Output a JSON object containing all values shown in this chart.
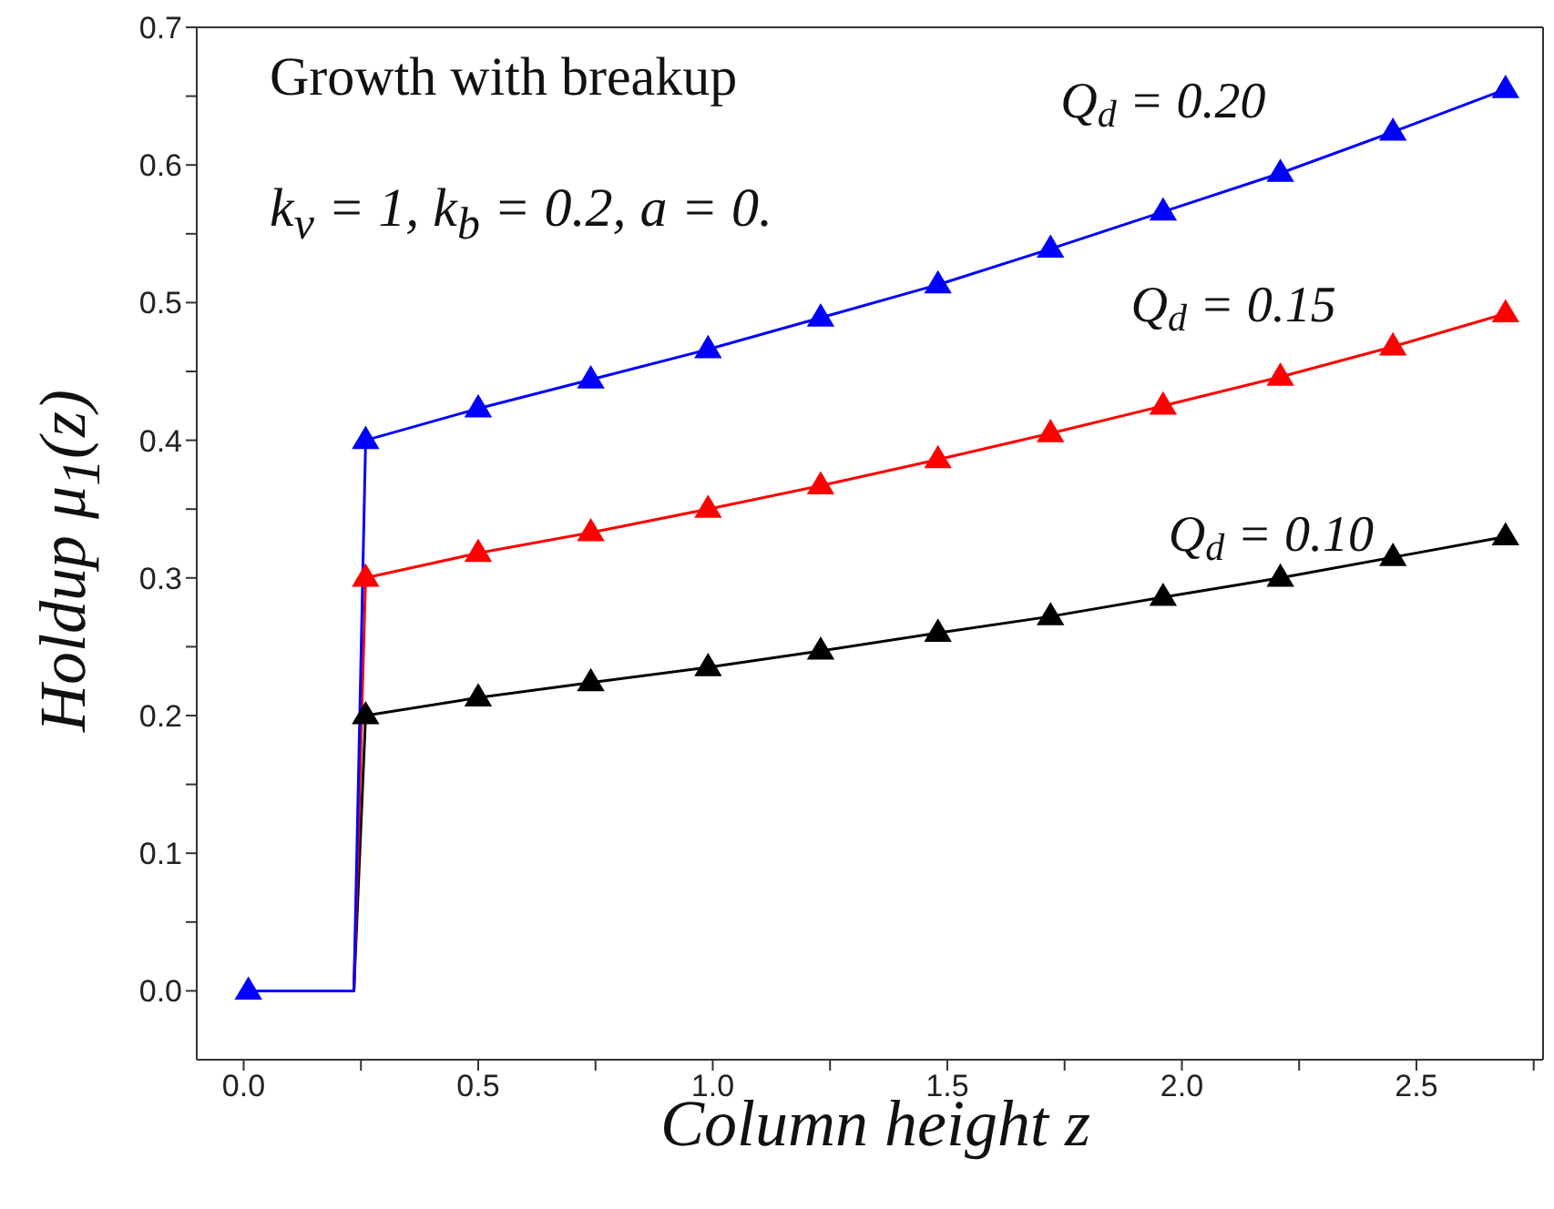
{
  "chart_data": {
    "type": "line",
    "xlabel": "Column height z",
    "ylabel": "Holdup μ$_{1}$(z)",
    "annotations": [
      "Growth with breakup",
      "k$_{v}$ = 1, k$_{b}$ = 0.2, a = 0."
    ],
    "series": [
      {
        "name": "Q$_{d}$ = 0.10",
        "marker": "none",
        "color": "#000000",
        "x": [
          0.01,
          0.235,
          0.26,
          0.5,
          0.74,
          0.99,
          1.23,
          1.48,
          1.72,
          1.96,
          2.21,
          2.45,
          2.69
        ],
        "values": [
          0,
          0,
          0.2,
          0.213,
          0.224,
          0.235,
          0.247,
          0.26,
          0.272,
          0.286,
          0.3,
          0.315,
          0.33
        ]
      },
      {
        "name": "Q$_{d}$ = 0.15",
        "marker": "none",
        "color": "#ff0000",
        "x": [
          0.01,
          0.235,
          0.26,
          0.5,
          0.74,
          0.99,
          1.23,
          1.48,
          1.72,
          1.96,
          2.21,
          2.45,
          2.69
        ],
        "values": [
          0,
          0,
          0.3,
          0.318,
          0.333,
          0.35,
          0.367,
          0.386,
          0.405,
          0.425,
          0.446,
          0.468,
          0.492
        ]
      },
      {
        "name": "Q$_{d}$ = 0.20",
        "marker": "none",
        "color": "#0000ff",
        "x": [
          0.01,
          0.235,
          0.26,
          0.5,
          0.74,
          0.99,
          1.23,
          1.48,
          1.72,
          1.96,
          2.21,
          2.45,
          2.69
        ],
        "values": [
          0,
          0,
          0.4,
          0.423,
          0.444,
          0.466,
          0.489,
          0.513,
          0.539,
          0.566,
          0.594,
          0.624,
          0.655
        ]
      },
      {
        "type": "scatter",
        "color": "#000000",
        "x": [
          0.26,
          0.5,
          0.74,
          0.99,
          1.23,
          1.48,
          1.72,
          1.96,
          2.21,
          2.45,
          2.69
        ],
        "values": [
          0.2,
          0.213,
          0.224,
          0.235,
          0.247,
          0.26,
          0.272,
          0.286,
          0.3,
          0.315,
          0.33
        ]
      },
      {
        "type": "scatter",
        "color": "#ff0000",
        "x": [
          0.26,
          0.5,
          0.74,
          0.99,
          1.23,
          1.48,
          1.72,
          1.96,
          2.21,
          2.45,
          2.69
        ],
        "values": [
          0.3,
          0.318,
          0.333,
          0.35,
          0.367,
          0.386,
          0.405,
          0.425,
          0.446,
          0.468,
          0.492
        ]
      },
      {
        "type": "scatter",
        "color": "#0000ff",
        "x": [
          0.01,
          0.26,
          0.5,
          0.74,
          0.99,
          1.23,
          1.48,
          1.72,
          1.96,
          2.21,
          2.45,
          2.69
        ],
        "values": [
          0,
          0.4,
          0.423,
          0.444,
          0.466,
          0.489,
          0.513,
          0.539,
          0.566,
          0.594,
          0.624,
          0.655
        ]
      }
    ],
    "marker": "triangle",
    "xlim": [
      -0.1,
      2.77
    ],
    "xticks": [
      {
        "value": 0,
        "label": "0.0"
      },
      {
        "value": 0.25,
        "label": null
      },
      {
        "value": 0.5,
        "label": "0.5"
      },
      {
        "value": 0.75,
        "label": null
      },
      {
        "value": 1,
        "label": "1.0"
      },
      {
        "value": 1.25,
        "label": null
      },
      {
        "value": 1.5,
        "label": "1.5"
      },
      {
        "value": 1.75,
        "label": null
      },
      {
        "value": 2,
        "label": "2.0"
      },
      {
        "value": 2.25,
        "label": null
      },
      {
        "value": 2.5,
        "label": "2.5"
      },
      {
        "value": 2.75,
        "label": null
      }
    ],
    "ylim": [
      -0.05,
      0.7
    ],
    "yticks": [
      {
        "value": 0,
        "label": "0.0"
      },
      {
        "value": 0.05,
        "label": null
      },
      {
        "value": 0.1,
        "label": "0.1"
      },
      {
        "value": 0.15,
        "label": null
      },
      {
        "value": 0.2,
        "label": "0.2"
      },
      {
        "value": 0.25,
        "label": null
      },
      {
        "value": 0.3,
        "label": "0.3"
      },
      {
        "value": 0.35,
        "label": null
      },
      {
        "value": 0.4,
        "label": "0.4"
      },
      {
        "value": 0.45,
        "label": null
      },
      {
        "value": 0.5,
        "label": "0.5"
      },
      {
        "value": 0.55,
        "label": null
      },
      {
        "value": 0.6,
        "label": "0.6"
      },
      {
        "value": 0.65,
        "label": null
      },
      {
        "value": 0.7,
        "label": "0.7"
      }
    ],
    "grid": false
  }
}
